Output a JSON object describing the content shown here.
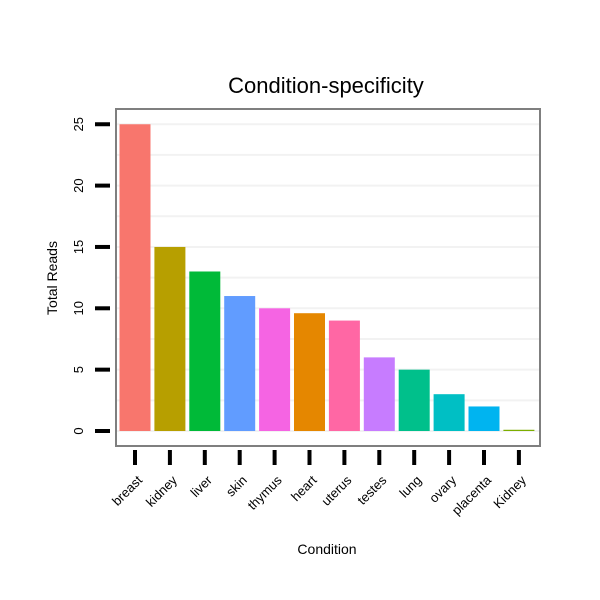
{
  "chart_data": {
    "type": "bar",
    "title": "Condition-specificity",
    "xlabel": "Condition",
    "ylabel": "Total Reads",
    "categories": [
      "breast",
      "kidney",
      "liver",
      "skin",
      "thymus",
      "heart",
      "uterus",
      "testes",
      "lung",
      "ovary",
      "placenta",
      "Kidney"
    ],
    "values": [
      25,
      15,
      13,
      11,
      10,
      9.6,
      9,
      6,
      5,
      3,
      2,
      0.1
    ],
    "colors": [
      "#F8766D",
      "#B79F00",
      "#00BA38",
      "#619CFF",
      "#F564E3",
      "#E58700",
      "#FF67A4",
      "#C77CFF",
      "#00C08B",
      "#00BFC4",
      "#00B4F0",
      "#7CAE00"
    ],
    "ylim": [
      0,
      26
    ],
    "yticks": [
      0,
      5,
      10,
      15,
      20,
      25
    ],
    "grid": true,
    "legend": "none"
  }
}
